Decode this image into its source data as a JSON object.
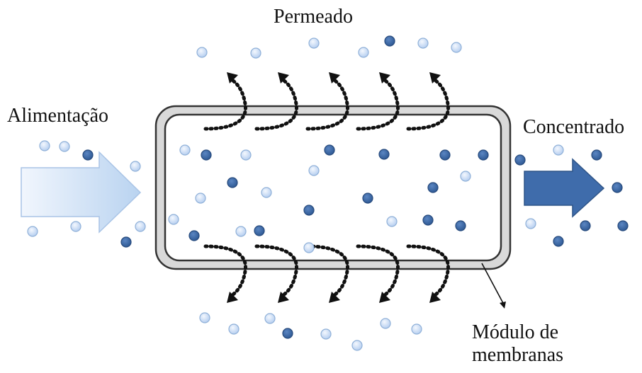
{
  "labels": {
    "permeate": "Permeado",
    "feed": "Alimentação",
    "concentrate": "Concentrado",
    "module_line1": "Módulo de",
    "module_line2": "membranas"
  },
  "colors": {
    "light_particle": "#c9dcf2",
    "light_particle_edge": "#8fb0d8",
    "dark_particle": "#3c68a5",
    "dark_particle_edge": "#274a7c",
    "feed_arrow_start": "#f1f6fd",
    "feed_arrow_end": "#b9d3f0",
    "concentrate_arrow": "#3f6cab",
    "module_outer": "#d9d9d9",
    "module_stroke": "#333333",
    "flow_arrow": "#111111"
  },
  "particle_types": [
    "light",
    "dark"
  ]
}
